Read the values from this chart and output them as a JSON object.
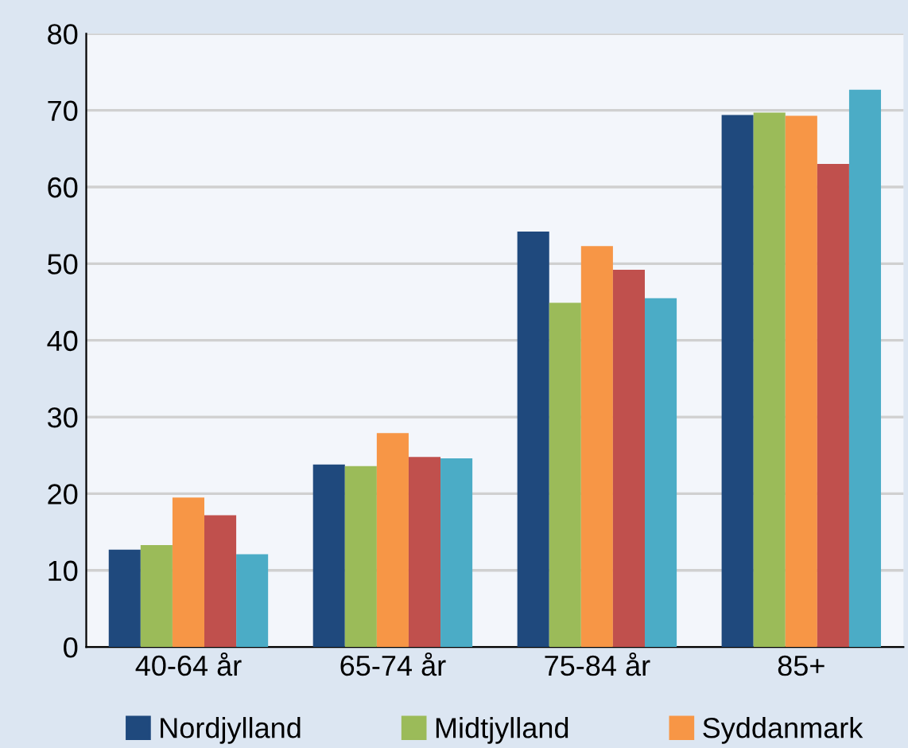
{
  "chart_data": {
    "type": "bar",
    "categories": [
      "40-64 år",
      "65-74 år",
      "75-84 år",
      "85+"
    ],
    "series": [
      {
        "name": "Nordjylland",
        "color": "#1f497d",
        "values": [
          12.7,
          23.8,
          54.2,
          69.4
        ]
      },
      {
        "name": "Midtjylland",
        "color": "#9bbb59",
        "values": [
          13.3,
          23.6,
          44.9,
          69.7
        ]
      },
      {
        "name": "Syddanmark",
        "color": "#f79646",
        "values": [
          19.5,
          27.9,
          52.3,
          69.3
        ]
      },
      {
        "color": "#c0504d",
        "values": [
          17.2,
          24.8,
          49.2,
          63.0
        ]
      },
      {
        "color": "#4bacc6",
        "values": [
          12.1,
          24.6,
          45.5,
          72.7
        ]
      }
    ],
    "ylim": [
      0,
      80
    ],
    "yticks": [
      0,
      10,
      20,
      30,
      40,
      50,
      60,
      70,
      80
    ],
    "grid": "y",
    "legend": "bottom"
  }
}
